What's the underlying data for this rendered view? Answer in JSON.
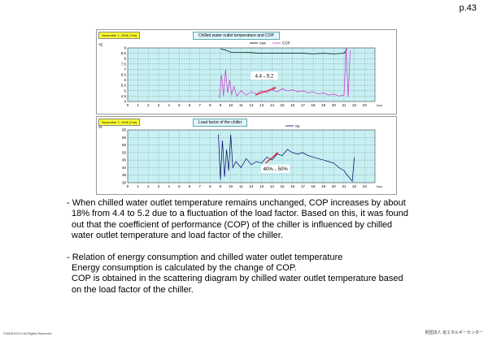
{
  "page_number": "p.43",
  "charts": [
    {
      "date_label": "November 1, 2006 (Tue)",
      "title": "Chilled water outlet temperature and COP",
      "y_unit": "℃",
      "x_unit": "hour",
      "legend": [
        {
          "name": "cws",
          "color": "#000000"
        },
        {
          "name": "COP",
          "color": "#cc33cc"
        }
      ],
      "annotation": "4.4→5.2",
      "accent_color": "#e8202a",
      "plot_color": "#c7f0f3"
    },
    {
      "date_label": "November 1, 2006 (Tue)",
      "title": "Load factor of the chiller",
      "y_unit": "%",
      "x_unit": "hour",
      "legend": [
        {
          "name": "oq",
          "color": "#000066"
        }
      ],
      "annotation": "40%→50%",
      "accent_color": "#e8202a",
      "plot_color": "#c7f0f3"
    }
  ],
  "chart_data": [
    {
      "type": "line",
      "x_ticks": [
        "0",
        "1",
        "2",
        "3",
        "4",
        "5",
        "6",
        "7",
        "8",
        "9",
        "10",
        "11",
        "12",
        "13",
        "14",
        "15",
        "16",
        "17",
        "18",
        "19",
        "20",
        "21",
        "22",
        "23"
      ],
      "y_ticks": [
        "4",
        "4.5",
        "5",
        "5.5",
        "6",
        "6.5",
        "7",
        "7.5",
        "8",
        "8.5",
        "9"
      ],
      "ylim": [
        4,
        9
      ],
      "xlim": [
        0,
        24
      ],
      "series": [
        {
          "name": "cws",
          "x": [
            9.0,
            9.5,
            10,
            11,
            12,
            13,
            14,
            15,
            16,
            17,
            18,
            19,
            20,
            21,
            21.3
          ],
          "y": [
            8.9,
            8.8,
            8.6,
            8.6,
            8.55,
            8.5,
            8.5,
            8.5,
            8.5,
            8.5,
            8.45,
            8.5,
            8.45,
            8.5,
            8.9
          ]
        },
        {
          "name": "COP",
          "x": [
            8.9,
            9.1,
            9.3,
            9.5,
            9.7,
            9.9,
            10.1,
            10.3,
            10.6,
            11,
            11.5,
            12,
            12.5,
            13,
            13.5,
            14,
            14.5,
            15,
            15.5,
            16,
            16.5,
            17,
            17.5,
            18,
            18.5,
            19,
            19.5,
            20,
            20.5,
            21,
            21.2,
            21.4,
            21.6
          ],
          "y": [
            4.3,
            6.5,
            4.5,
            7.0,
            4.8,
            6.0,
            4.6,
            5.4,
            4.5,
            5.0,
            4.6,
            4.9,
            4.7,
            5.0,
            4.8,
            5.1,
            4.9,
            5.2,
            5.0,
            5.1,
            4.9,
            5.0,
            4.8,
            4.9,
            4.7,
            4.8,
            4.6,
            4.7,
            4.5,
            4.6,
            9.0,
            4.4,
            8.8
          ]
        }
      ]
    },
    {
      "type": "line",
      "x_ticks": [
        "0",
        "1",
        "2",
        "3",
        "4",
        "5",
        "6",
        "7",
        "8",
        "9",
        "10",
        "11",
        "12",
        "13",
        "14",
        "15",
        "16",
        "17",
        "18",
        "19",
        "20",
        "21",
        "22",
        "23"
      ],
      "y_ticks": [
        "30",
        "35",
        "40",
        "45",
        "50",
        "55",
        "60",
        "65"
      ],
      "ylim": [
        30,
        65
      ],
      "xlim": [
        0,
        24
      ],
      "series": [
        {
          "name": "oq",
          "x": [
            8.8,
            9.0,
            9.2,
            9.4,
            9.6,
            9.8,
            10.0,
            10.2,
            10.5,
            11,
            11.5,
            12,
            12.5,
            13,
            13.5,
            14,
            14.5,
            15,
            15.5,
            16,
            16.5,
            17,
            17.5,
            18,
            18.5,
            19,
            19.5,
            20,
            20.5,
            21,
            21.2,
            21.8,
            22.0
          ],
          "y": [
            62,
            32,
            58,
            34,
            52,
            38,
            62,
            40,
            44,
            40,
            46,
            42,
            44,
            43,
            47,
            45,
            49,
            48,
            52,
            50,
            49,
            50,
            48,
            47,
            46,
            45,
            44,
            43,
            40,
            38,
            36,
            31,
            47
          ]
        }
      ]
    }
  ],
  "paragraphs": [
    [
      "- When chilled water outlet temperature remains unchanged, COP increases by about",
      "18% from 4.4 to 5.2 due to a fluctuation of the load factor. Based on this, it was found",
      "out that the coefficient of performance (COP) of the chiller is influenced by chilled",
      "water outlet temperature and load factor of the chiller."
    ],
    [
      "- Relation of energy consumption and chilled water outlet temperature",
      "Energy consumption is calculated by the change of COP.",
      "COP is obtained in the scattering diagram by chilled water outlet temperature based",
      "on the load factor of the chiller."
    ]
  ],
  "footer_left": "©2008 ECCJ All Rights Reserved",
  "footer_right": "財団法人 省エネルギーセンター"
}
